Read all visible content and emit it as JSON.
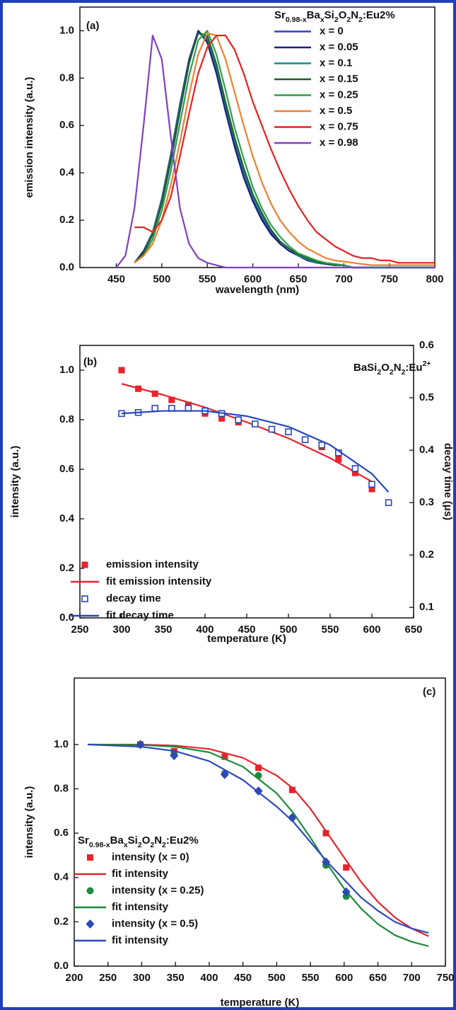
{
  "chart_data": [
    {
      "type": "line",
      "panel_label": "(a)",
      "x_label": "wavelength (nm)",
      "y_label": "emission intensity (a.u.)",
      "legend_title": "Sr0.98-xBaxSi2O2N2:Eu2%",
      "x": [
        450,
        460,
        470,
        480,
        490,
        500,
        510,
        520,
        530,
        540,
        550,
        560,
        570,
        580,
        590,
        600,
        610,
        620,
        630,
        640,
        650,
        660,
        670,
        680,
        690,
        700,
        710,
        720,
        730,
        740,
        750,
        760,
        770,
        780,
        790,
        800
      ],
      "xlim": [
        410,
        800
      ],
      "xticks": [
        450,
        500,
        550,
        600,
        650,
        700,
        750,
        800
      ],
      "ylim": [
        0,
        1.1
      ],
      "yticks": [
        {
          "value": 0,
          "label": "0.0"
        },
        0.2,
        0.4,
        0.6,
        0.8,
        {
          "value": 1,
          "label": "1.0"
        }
      ],
      "series": [
        {
          "name": "x = 0",
          "color": "#3344b8",
          "values": [
            null,
            null,
            0.02,
            0.06,
            0.14,
            0.27,
            0.45,
            0.66,
            0.86,
            1.0,
            0.96,
            0.84,
            0.68,
            0.53,
            0.4,
            0.29,
            0.21,
            0.15,
            0.1,
            0.07,
            0.05,
            0.03,
            0.02,
            0.015,
            0.01,
            0.01,
            0,
            0,
            0,
            0,
            0,
            0,
            0,
            0,
            0,
            0
          ]
        },
        {
          "name": "x = 0.05",
          "color": "#1a237e",
          "values": [
            null,
            null,
            0.02,
            0.07,
            0.15,
            0.29,
            0.48,
            0.69,
            0.88,
            1.0,
            0.95,
            0.82,
            0.66,
            0.51,
            0.38,
            0.28,
            0.2,
            0.14,
            0.1,
            0.07,
            0.05,
            0.03,
            0.02,
            0.015,
            0.01,
            0.01,
            0,
            0,
            0,
            0,
            0,
            0,
            0,
            0,
            0,
            0
          ]
        },
        {
          "name": "x = 0.1",
          "color": "#1a8a8a",
          "values": [
            null,
            null,
            0.02,
            0.06,
            0.15,
            0.28,
            0.47,
            0.68,
            0.87,
            0.99,
            0.97,
            0.85,
            0.69,
            0.54,
            0.41,
            0.3,
            0.22,
            0.16,
            0.11,
            0.08,
            0.05,
            0.035,
            0.02,
            0.015,
            0.01,
            0.01,
            0,
            0,
            0,
            0,
            0,
            0,
            0,
            0,
            0,
            0
          ]
        },
        {
          "name": "x = 0.15",
          "color": "#1b5e2a",
          "values": [
            null,
            null,
            0.02,
            0.06,
            0.14,
            0.27,
            0.46,
            0.67,
            0.87,
            0.99,
            0.98,
            0.86,
            0.7,
            0.55,
            0.42,
            0.31,
            0.23,
            0.16,
            0.11,
            0.08,
            0.055,
            0.04,
            0.025,
            0.015,
            0.01,
            0.01,
            0,
            0,
            0,
            0,
            0,
            0,
            0,
            0,
            0,
            0
          ]
        },
        {
          "name": "x = 0.25",
          "color": "#2e9e4a",
          "values": [
            null,
            null,
            0.02,
            0.05,
            0.12,
            0.24,
            0.41,
            0.61,
            0.81,
            0.96,
            1.0,
            0.9,
            0.75,
            0.59,
            0.46,
            0.34,
            0.25,
            0.18,
            0.13,
            0.09,
            0.06,
            0.045,
            0.03,
            0.02,
            0.015,
            0.01,
            0,
            0,
            0,
            0,
            0,
            0,
            0,
            0,
            0,
            0
          ]
        },
        {
          "name": "x = 0.5",
          "color": "#f0802e",
          "values": [
            null,
            null,
            0.02,
            0.05,
            0.1,
            0.2,
            0.35,
            0.53,
            0.73,
            0.9,
            0.99,
            0.98,
            0.88,
            0.74,
            0.6,
            0.47,
            0.36,
            0.27,
            0.2,
            0.15,
            0.11,
            0.08,
            0.06,
            0.04,
            0.03,
            0.025,
            0.02,
            0.015,
            0.01,
            0.01,
            0.01,
            0.01,
            0.01,
            0.01,
            0.01,
            0.01
          ]
        },
        {
          "name": "x = 0.75",
          "color": "#e82020",
          "values": [
            null,
            null,
            0.17,
            0.17,
            0.15,
            0.2,
            0.3,
            0.47,
            0.65,
            0.82,
            0.93,
            0.98,
            0.98,
            0.92,
            0.82,
            0.7,
            0.6,
            0.5,
            0.41,
            0.33,
            0.26,
            0.2,
            0.15,
            0.12,
            0.09,
            0.07,
            0.05,
            0.04,
            0.04,
            0.03,
            0.03,
            0.02,
            0.02,
            0.02,
            0.02,
            0.02
          ]
        },
        {
          "name": "x = 0.98",
          "color": "#8040c0",
          "values": [
            0,
            0.05,
            0.25,
            0.6,
            0.98,
            0.88,
            0.55,
            0.25,
            0.1,
            0.04,
            0.02,
            0.01,
            0,
            0,
            0,
            0,
            0,
            0,
            0,
            0,
            0,
            0,
            0,
            0,
            0,
            0,
            0,
            0,
            0,
            0,
            0,
            0,
            0,
            0,
            0,
            0
          ]
        }
      ]
    },
    {
      "type": "scatter",
      "panel_label": "(b)",
      "annotation": "BaSi2O2N2:Eu2+",
      "x_label": "temperature (K)",
      "y_label": "intensity (a.u.)",
      "y2_label": "decay time (μs)",
      "xlim": [
        250,
        650
      ],
      "xticks": [
        250,
        300,
        350,
        400,
        450,
        500,
        550,
        600,
        650
      ],
      "ylim": [
        0,
        1.1
      ],
      "yticks": [
        {
          "value": 0,
          "label": "0.0"
        },
        0.2,
        0.4,
        0.6,
        0.8,
        {
          "value": 1,
          "label": "1.0"
        }
      ],
      "y2lim": [
        0.08,
        0.6
      ],
      "y2ticks": [
        0.1,
        0.2,
        0.3,
        0.4,
        0.5,
        0.6
      ],
      "series": [
        {
          "name": "emission intensity",
          "color": "#e8232a",
          "marker": "square",
          "x": [
            300,
            320,
            340,
            360,
            380,
            400,
            420,
            440,
            500,
            520,
            540,
            560,
            580,
            600
          ],
          "values": [
            1.0,
            0.925,
            0.905,
            0.88,
            0.86,
            0.825,
            0.805,
            0.79,
            0.75,
            0.72,
            0.69,
            0.64,
            0.585,
            0.52
          ]
        },
        {
          "name": "fit emission intensity",
          "color": "#e8232a",
          "x": [
            300,
            350,
            400,
            450,
            500,
            550,
            600
          ],
          "values": [
            0.945,
            0.9,
            0.85,
            0.79,
            0.725,
            0.645,
            0.55
          ]
        },
        {
          "name": "decay time",
          "color": "#2646b8",
          "marker": "open-square",
          "axis": "y2",
          "x": [
            300,
            320,
            340,
            360,
            380,
            400,
            420,
            440,
            460,
            480,
            500,
            520,
            540,
            560,
            580,
            600,
            620
          ],
          "values": [
            0.47,
            0.472,
            0.48,
            0.48,
            0.48,
            0.475,
            0.47,
            0.458,
            0.45,
            0.44,
            0.435,
            0.42,
            0.41,
            0.395,
            0.365,
            0.335,
            0.3
          ]
        },
        {
          "name": "fit decay time",
          "color": "#2646b8",
          "axis": "y2",
          "x": [
            300,
            350,
            400,
            450,
            500,
            550,
            600,
            620
          ],
          "values": [
            0.47,
            0.475,
            0.475,
            0.465,
            0.445,
            0.41,
            0.355,
            0.32
          ]
        }
      ]
    },
    {
      "type": "scatter",
      "panel_label": "(c)",
      "x_label": "temperature (K)",
      "y_label": "intensity (a.u.)",
      "legend_title": "Sr0.98-xBaxSi2O2N2:Eu2%",
      "xlim": [
        200,
        750
      ],
      "xticks": [
        200,
        250,
        300,
        350,
        400,
        450,
        500,
        550,
        600,
        650,
        700,
        750
      ],
      "ylim": [
        0,
        1.3
      ],
      "yticks": [
        {
          "value": 0,
          "label": "0.0"
        },
        0.2,
        0.4,
        0.6,
        0.8,
        {
          "value": 1,
          "label": "1.0"
        }
      ],
      "series": [
        {
          "name": "intensity (x = 0)",
          "color": "#e8232a",
          "marker": "square",
          "x": [
            298,
            348,
            423,
            473,
            523,
            573,
            603
          ],
          "values": [
            1.0,
            0.97,
            0.945,
            0.895,
            0.795,
            0.6,
            0.445
          ]
        },
        {
          "name": "fit intensity",
          "color": "#e8232a",
          "x": [
            220,
            300,
            350,
            400,
            450,
            500,
            525,
            550,
            575,
            600,
            625,
            650,
            675,
            700,
            725
          ],
          "values": [
            1.0,
            1.0,
            0.995,
            0.98,
            0.94,
            0.86,
            0.8,
            0.71,
            0.6,
            0.49,
            0.38,
            0.29,
            0.22,
            0.17,
            0.135
          ]
        },
        {
          "name": "intensity (x = 0.25)",
          "color": "#1e8a3c",
          "marker": "circle",
          "x": [
            298,
            348,
            423,
            473,
            523,
            573,
            603
          ],
          "values": [
            1.0,
            0.955,
            0.87,
            0.86,
            0.67,
            0.455,
            0.315
          ]
        },
        {
          "name": "fit intensity",
          "color": "#1e8a3c",
          "x": [
            220,
            300,
            350,
            400,
            450,
            500,
            525,
            550,
            575,
            600,
            625,
            650,
            675,
            700,
            725
          ],
          "values": [
            1.0,
            0.998,
            0.99,
            0.965,
            0.9,
            0.78,
            0.69,
            0.58,
            0.46,
            0.35,
            0.26,
            0.19,
            0.14,
            0.11,
            0.09
          ]
        },
        {
          "name": "intensity (x = 0.5)",
          "color": "#2e48b8",
          "marker": "diamond",
          "x": [
            298,
            348,
            423,
            473,
            523,
            573,
            603
          ],
          "values": [
            1.0,
            0.95,
            0.865,
            0.79,
            0.67,
            0.47,
            0.335
          ]
        },
        {
          "name": "fit intensity",
          "color": "#2e48b8",
          "x": [
            220,
            300,
            350,
            400,
            450,
            500,
            525,
            550,
            575,
            600,
            625,
            650,
            675,
            700,
            725
          ],
          "values": [
            1.0,
            0.99,
            0.97,
            0.925,
            0.84,
            0.72,
            0.65,
            0.56,
            0.47,
            0.39,
            0.31,
            0.25,
            0.2,
            0.17,
            0.15
          ]
        }
      ]
    }
  ]
}
